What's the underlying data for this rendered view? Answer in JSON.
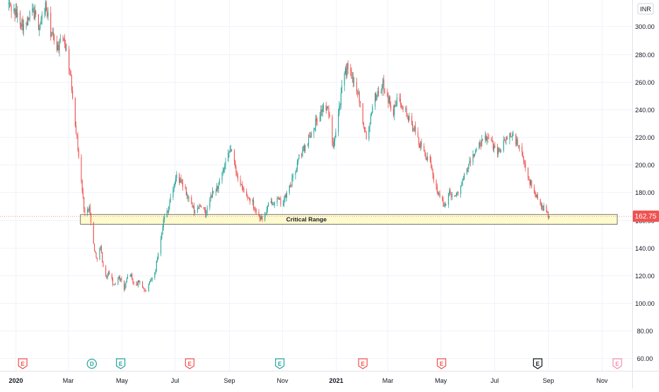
{
  "chart_data": {
    "type": "candlestick",
    "currency": "INR",
    "last_price": "162.75",
    "ylim": [
      50,
      320
    ],
    "y_ticks": [
      "60.00",
      "80.00",
      "100.00",
      "120.00",
      "140.00",
      "160.00",
      "180.00",
      "200.00",
      "220.00",
      "240.00",
      "260.00",
      "280.00",
      "300.00"
    ],
    "x_ticks": [
      {
        "label": "2020",
        "date": "2020-01-01",
        "bold": true
      },
      {
        "label": "Mar",
        "date": "2020-03-01"
      },
      {
        "label": "May",
        "date": "2020-05-01"
      },
      {
        "label": "Jul",
        "date": "2020-07-01"
      },
      {
        "label": "Sep",
        "date": "2020-09-01"
      },
      {
        "label": "Nov",
        "date": "2020-11-01"
      },
      {
        "label": "2021",
        "date": "2021-01-01",
        "bold": true
      },
      {
        "label": "Mar",
        "date": "2021-03-01"
      },
      {
        "label": "May",
        "date": "2021-05-01"
      },
      {
        "label": "Jul",
        "date": "2021-07-01"
      },
      {
        "label": "Sep",
        "date": "2021-09-01"
      },
      {
        "label": "Nov",
        "date": "2021-11-01"
      }
    ],
    "x_range": [
      "2019-12-14",
      "2021-12-06"
    ],
    "zone": {
      "label": "Critical Range",
      "low": 157,
      "high": 164,
      "start": "2020-03-15",
      "end": "2021-11-19"
    },
    "price_path": [
      [
        "2019-12-24",
        316
      ],
      [
        "2020-01-05",
        306
      ],
      [
        "2020-01-12",
        298
      ],
      [
        "2020-01-20",
        312
      ],
      [
        "2020-01-28",
        300
      ],
      [
        "2020-02-04",
        315
      ],
      [
        "2020-02-10",
        296
      ],
      [
        "2020-02-18",
        285
      ],
      [
        "2020-02-25",
        292
      ],
      [
        "2020-03-02",
        272
      ],
      [
        "2020-03-06",
        250
      ],
      [
        "2020-03-10",
        225
      ],
      [
        "2020-03-14",
        200
      ],
      [
        "2020-03-18",
        175
      ],
      [
        "2020-03-21",
        160
      ],
      [
        "2020-03-25",
        172
      ],
      [
        "2020-03-28",
        150
      ],
      [
        "2020-04-02",
        132
      ],
      [
        "2020-04-07",
        140
      ],
      [
        "2020-04-12",
        118
      ],
      [
        "2020-04-17",
        122
      ],
      [
        "2020-04-22",
        112
      ],
      [
        "2020-04-28",
        120
      ],
      [
        "2020-05-04",
        110
      ],
      [
        "2020-05-10",
        123
      ],
      [
        "2020-05-16",
        112
      ],
      [
        "2020-05-22",
        116
      ],
      [
        "2020-05-28",
        108
      ],
      [
        "2020-06-03",
        115
      ],
      [
        "2020-06-08",
        122
      ],
      [
        "2020-06-13",
        140
      ],
      [
        "2020-06-18",
        160
      ],
      [
        "2020-06-23",
        168
      ],
      [
        "2020-06-28",
        180
      ],
      [
        "2020-07-03",
        192
      ],
      [
        "2020-07-10",
        185
      ],
      [
        "2020-07-17",
        175
      ],
      [
        "2020-07-24",
        165
      ],
      [
        "2020-07-30",
        172
      ],
      [
        "2020-08-05",
        164
      ],
      [
        "2020-08-12",
        178
      ],
      [
        "2020-08-20",
        185
      ],
      [
        "2020-08-28",
        200
      ],
      [
        "2020-09-03",
        212
      ],
      [
        "2020-09-08",
        198
      ],
      [
        "2020-09-14",
        185
      ],
      [
        "2020-09-20",
        178
      ],
      [
        "2020-09-27",
        174
      ],
      [
        "2020-10-03",
        165
      ],
      [
        "2020-10-10",
        160
      ],
      [
        "2020-10-17",
        172
      ],
      [
        "2020-10-25",
        175
      ],
      [
        "2020-11-01",
        172
      ],
      [
        "2020-11-07",
        180
      ],
      [
        "2020-11-13",
        190
      ],
      [
        "2020-11-20",
        205
      ],
      [
        "2020-11-28",
        215
      ],
      [
        "2020-12-05",
        225
      ],
      [
        "2020-12-12",
        235
      ],
      [
        "2020-12-18",
        242
      ],
      [
        "2020-12-24",
        238
      ],
      [
        "2020-12-29",
        215
      ],
      [
        "2021-01-04",
        238
      ],
      [
        "2021-01-10",
        262
      ],
      [
        "2021-01-15",
        272
      ],
      [
        "2021-01-20",
        260
      ],
      [
        "2021-01-26",
        255
      ],
      [
        "2021-02-01",
        232
      ],
      [
        "2021-02-06",
        218
      ],
      [
        "2021-02-12",
        245
      ],
      [
        "2021-02-18",
        252
      ],
      [
        "2021-02-24",
        258
      ],
      [
        "2021-03-02",
        248
      ],
      [
        "2021-03-08",
        238
      ],
      [
        "2021-03-14",
        250
      ],
      [
        "2021-03-20",
        242
      ],
      [
        "2021-03-26",
        232
      ],
      [
        "2021-04-01",
        225
      ],
      [
        "2021-04-07",
        215
      ],
      [
        "2021-04-13",
        208
      ],
      [
        "2021-04-19",
        200
      ],
      [
        "2021-04-24",
        188
      ],
      [
        "2021-04-30",
        176
      ],
      [
        "2021-05-05",
        170
      ],
      [
        "2021-05-11",
        180
      ],
      [
        "2021-05-18",
        177
      ],
      [
        "2021-05-25",
        186
      ],
      [
        "2021-06-01",
        198
      ],
      [
        "2021-06-08",
        208
      ],
      [
        "2021-06-15",
        214
      ],
      [
        "2021-06-22",
        220
      ],
      [
        "2021-06-29",
        215
      ],
      [
        "2021-07-06",
        210
      ],
      [
        "2021-07-12",
        215
      ],
      [
        "2021-07-18",
        222
      ],
      [
        "2021-07-24",
        220
      ],
      [
        "2021-07-30",
        212
      ],
      [
        "2021-08-05",
        200
      ],
      [
        "2021-08-11",
        188
      ],
      [
        "2021-08-16",
        180
      ],
      [
        "2021-08-22",
        174
      ],
      [
        "2021-08-27",
        168
      ],
      [
        "2021-09-02",
        162.75
      ]
    ],
    "events": [
      {
        "date": "2020-01-09",
        "type": "earnings",
        "glyph": "E",
        "color": "#ef5350"
      },
      {
        "date": "2020-03-28",
        "type": "dividend",
        "glyph": "D",
        "color": "#26a69a"
      },
      {
        "date": "2020-04-30",
        "type": "earnings",
        "glyph": "E",
        "color": "#26a69a"
      },
      {
        "date": "2020-07-18",
        "type": "earnings",
        "glyph": "E",
        "color": "#ef5350"
      },
      {
        "date": "2020-10-29",
        "type": "earnings",
        "glyph": "E",
        "color": "#26a69a"
      },
      {
        "date": "2021-02-01",
        "type": "earnings",
        "glyph": "E",
        "color": "#ef5350"
      },
      {
        "date": "2021-05-02",
        "type": "earnings",
        "glyph": "E",
        "color": "#ef5350"
      },
      {
        "date": "2021-08-20",
        "type": "earnings",
        "glyph": "E",
        "color": "#131722"
      },
      {
        "date": "2021-11-19",
        "type": "earnings",
        "glyph": "E",
        "color": "#f48fb1"
      }
    ],
    "colors": {
      "up": "#26a69a",
      "down": "#ef5350",
      "grid": "#f0f3fa",
      "text": "#131722",
      "zone_fill": "#fffbcf",
      "zone_border": "#555555"
    }
  }
}
